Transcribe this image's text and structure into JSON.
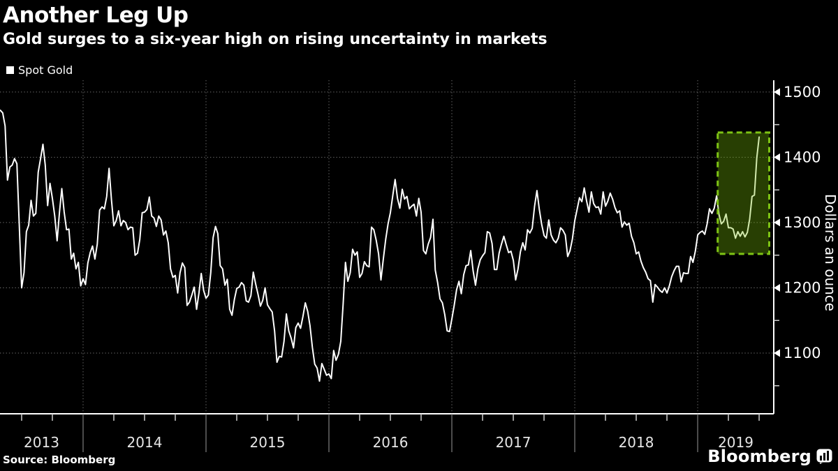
{
  "header": {
    "title": "Another Leg Up",
    "subtitle": "Gold surges to a six-year high on rising uncertainty in markets"
  },
  "legend": {
    "label": "Spot Gold",
    "swatch_color": "#ffffff"
  },
  "footer": {
    "source": "Source: Bloomberg",
    "brand": "Bloomberg"
  },
  "colors": {
    "background": "#000000",
    "line": "#ffffff",
    "axis": "#ffffff",
    "grid": "#9b9b9b",
    "tick_label": "#ffffff",
    "year_label": "#e6e6e6",
    "year_tick": "#9a9a9a",
    "minor_tick": "#cfcfcf",
    "highlight_border": "#7ec314",
    "highlight_fill": "rgba(122,192,10,0.33)"
  },
  "chart_data": {
    "type": "line",
    "title": "Another Leg Up",
    "subtitle": "Gold surges to a six-year high on rising uncertainty in markets",
    "series_name": "Spot Gold",
    "ylabel": "Dollars an ounce",
    "xlabel": "",
    "grid": true,
    "xlim": [
      2013.324,
      2019.619
    ],
    "ylim": [
      1007,
      1518
    ],
    "yticks": [
      1100,
      1200,
      1300,
      1400,
      1500
    ],
    "yticks_minor": [
      1050,
      1150,
      1250,
      1350,
      1450
    ],
    "year_boundaries": [
      2014,
      2015,
      2016,
      2017,
      2018,
      2019
    ],
    "year_labels": [
      "2013",
      "2014",
      "2015",
      "2016",
      "2017",
      "2018",
      "2019"
    ],
    "highlight_box": {
      "meaning": "recent surge to six-year high",
      "x0": 2019.163,
      "x1": 2019.582,
      "y0": 1252,
      "y1": 1438
    },
    "x_start": 2013.327,
    "x_step_years": 0.019231,
    "values": [
      1472,
      1468,
      1448,
      1365,
      1385,
      1388,
      1398,
      1390,
      1296,
      1200,
      1223,
      1286,
      1296,
      1334,
      1310,
      1314,
      1377,
      1398,
      1420,
      1388,
      1326,
      1360,
      1337,
      1310,
      1272,
      1316,
      1352,
      1316,
      1289,
      1290,
      1244,
      1253,
      1229,
      1239,
      1203,
      1214,
      1205,
      1238,
      1254,
      1264,
      1244,
      1267,
      1319,
      1324,
      1321,
      1340,
      1383,
      1335,
      1295,
      1303,
      1318,
      1295,
      1303,
      1300,
      1289,
      1293,
      1292,
      1250,
      1253,
      1274,
      1315,
      1316,
      1320,
      1339,
      1310,
      1307,
      1294,
      1310,
      1304,
      1281,
      1287,
      1269,
      1229,
      1216,
      1219,
      1192,
      1223,
      1238,
      1231,
      1173,
      1178,
      1189,
      1201,
      1167,
      1192,
      1222,
      1196,
      1184,
      1189,
      1223,
      1277,
      1294,
      1283,
      1234,
      1229,
      1204,
      1213,
      1167,
      1158,
      1182,
      1199,
      1201,
      1208,
      1204,
      1180,
      1178,
      1188,
      1224,
      1206,
      1190,
      1172,
      1181,
      1200,
      1174,
      1168,
      1163,
      1134,
      1086,
      1095,
      1094,
      1118,
      1160,
      1134,
      1123,
      1108,
      1139,
      1146,
      1138,
      1156,
      1177,
      1164,
      1142,
      1109,
      1083,
      1077,
      1057,
      1084,
      1075,
      1066,
      1068,
      1061,
      1104,
      1089,
      1098,
      1118,
      1174,
      1239,
      1210,
      1223,
      1259,
      1250,
      1255,
      1216,
      1222,
      1240,
      1234,
      1232,
      1293,
      1289,
      1273,
      1252,
      1212,
      1244,
      1274,
      1298,
      1315,
      1341,
      1366,
      1337,
      1322,
      1351,
      1336,
      1340,
      1321,
      1325,
      1328,
      1310,
      1337,
      1316,
      1257,
      1252,
      1267,
      1277,
      1305,
      1227,
      1208,
      1183,
      1177,
      1159,
      1134,
      1133,
      1152,
      1173,
      1197,
      1210,
      1191,
      1220,
      1234,
      1235,
      1257,
      1226,
      1204,
      1229,
      1243,
      1249,
      1254,
      1286,
      1284,
      1268,
      1228,
      1228,
      1253,
      1267,
      1279,
      1266,
      1254,
      1256,
      1242,
      1212,
      1229,
      1255,
      1269,
      1258,
      1289,
      1284,
      1291,
      1325,
      1349,
      1320,
      1297,
      1280,
      1276,
      1304,
      1281,
      1273,
      1269,
      1276,
      1292,
      1288,
      1281,
      1248,
      1257,
      1275,
      1303,
      1320,
      1338,
      1332,
      1353,
      1333,
      1316,
      1347,
      1329,
      1323,
      1324,
      1313,
      1347,
      1325,
      1333,
      1345,
      1336,
      1323,
      1315,
      1318,
      1293,
      1301,
      1296,
      1299,
      1279,
      1269,
      1252,
      1255,
      1241,
      1231,
      1224,
      1214,
      1211,
      1178,
      1205,
      1201,
      1196,
      1193,
      1200,
      1192,
      1203,
      1217,
      1226,
      1233,
      1233,
      1209,
      1223,
      1222,
      1222,
      1248,
      1239,
      1256,
      1281,
      1285,
      1287,
      1282,
      1298,
      1321,
      1314,
      1322,
      1341,
      1313,
      1298,
      1302,
      1313,
      1292,
      1292,
      1290,
      1276,
      1286,
      1279,
      1286,
      1278,
      1285,
      1305,
      1340,
      1342,
      1399,
      1431
    ]
  }
}
